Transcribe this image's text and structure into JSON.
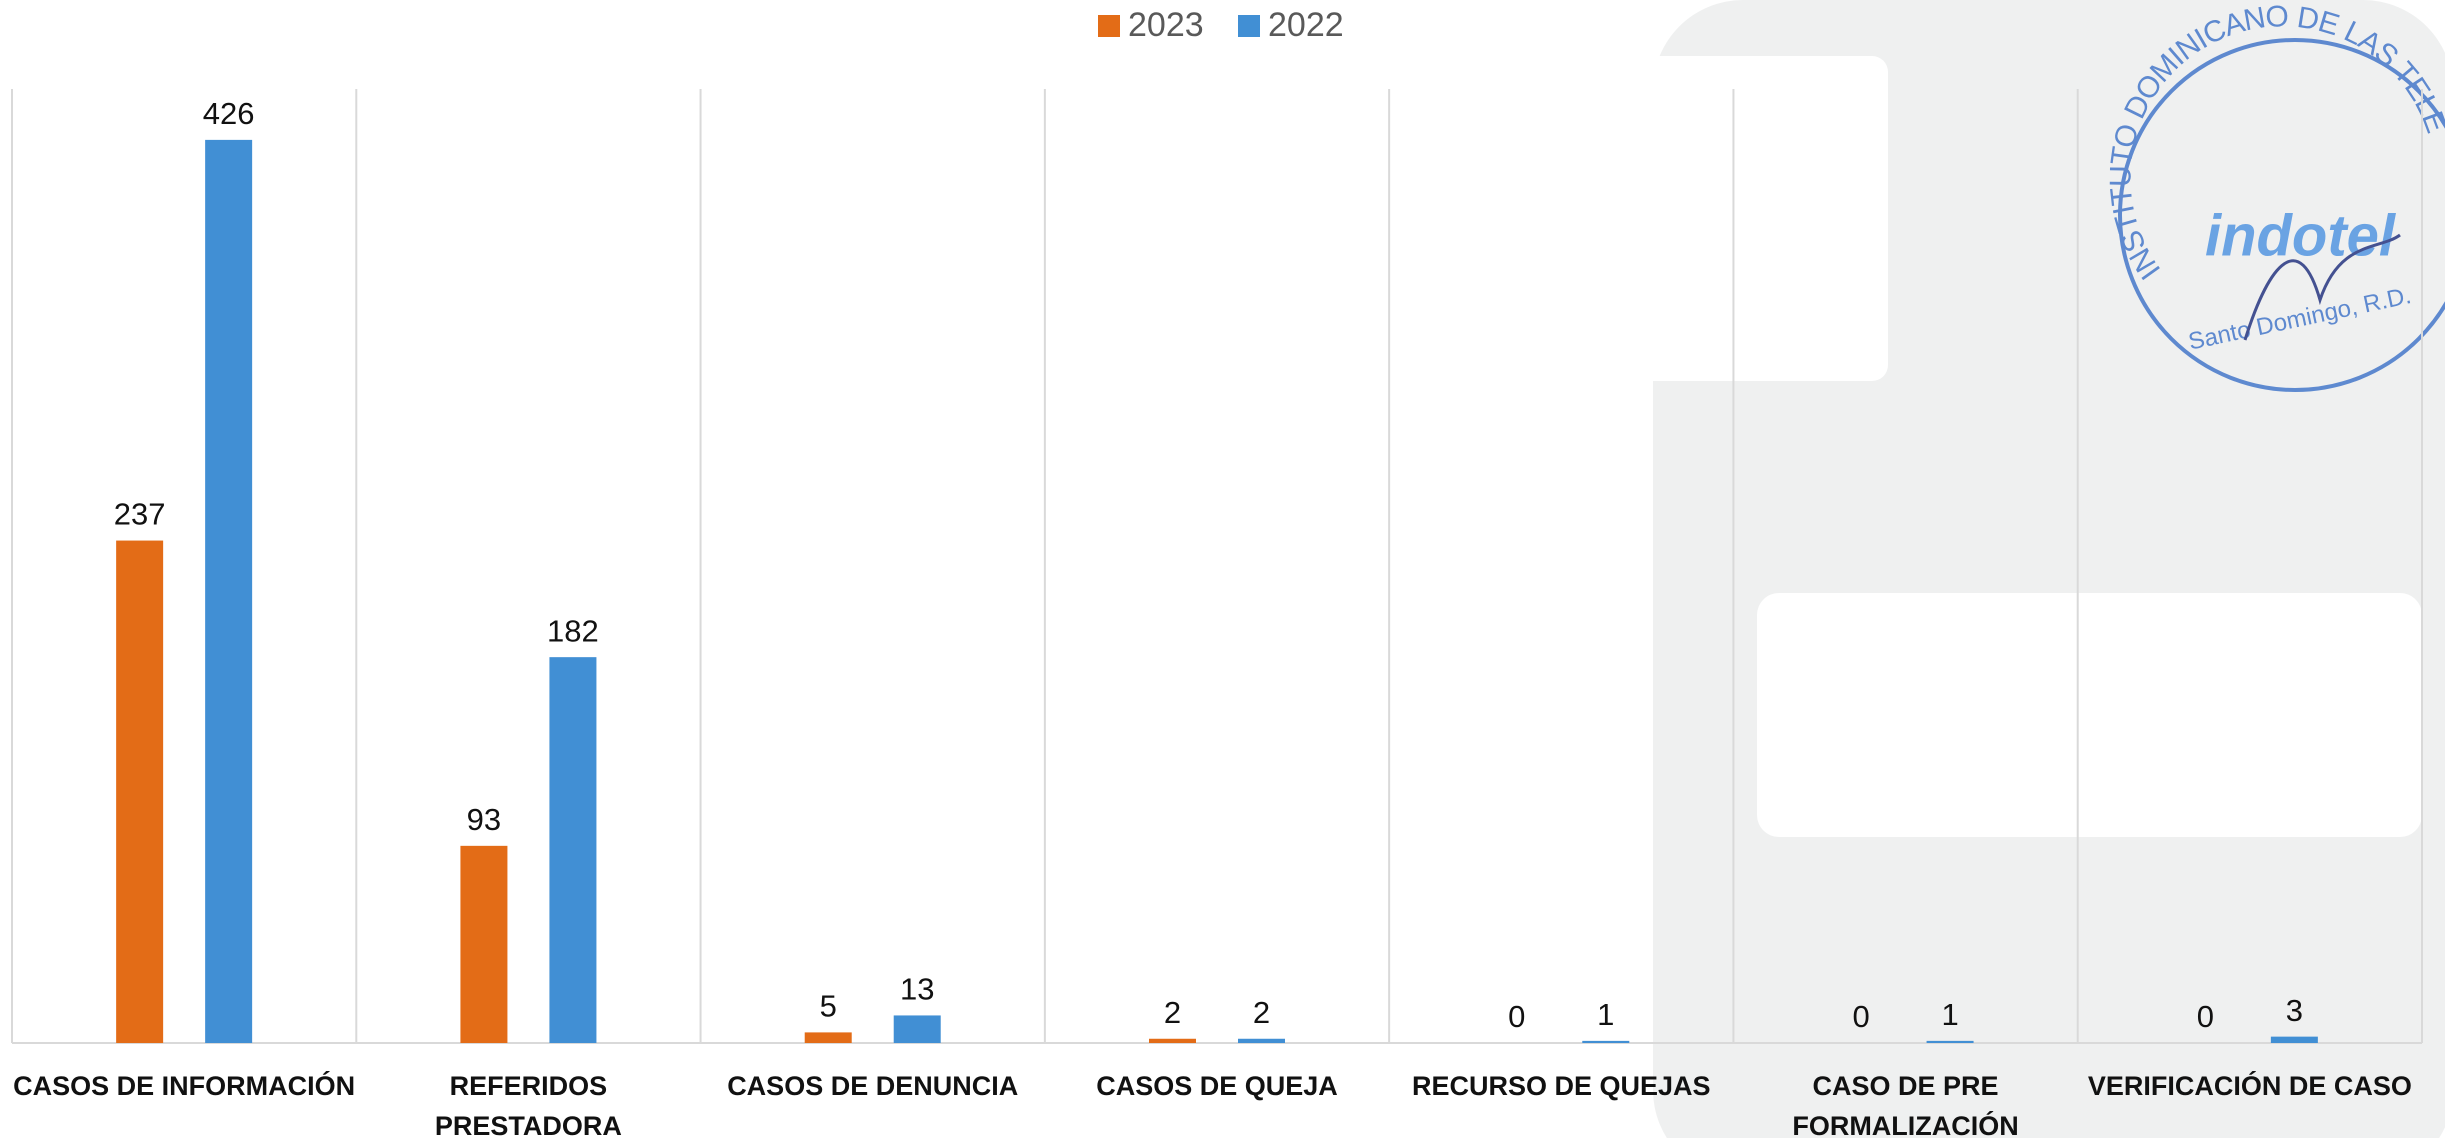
{
  "chart_data": {
    "type": "bar",
    "categories": [
      "CASOS DE INFORMACIÓN",
      "REFERIDOS PRESTADORA",
      "CASOS DE DENUNCIA",
      "CASOS DE QUEJA",
      "RECURSO DE QUEJAS",
      "CASO DE PRE FORMALIZACIÓN",
      "VERIFICACIÓN DE CASO"
    ],
    "series": [
      {
        "name": "2023",
        "color": "#e36c17",
        "values": [
          237,
          93,
          5,
          2,
          0,
          0,
          0
        ]
      },
      {
        "name": "2022",
        "color": "#418fd4",
        "values": [
          426,
          182,
          13,
          2,
          1,
          1,
          3
        ]
      }
    ],
    "ylim": [
      0,
      450
    ],
    "grid": true,
    "legend": "top"
  },
  "stamp": {
    "ring": "INSTITUTO DOMINICANO DE LAS TELE",
    "logo": "indotel",
    "place": "Santo Domingo, R.D."
  }
}
